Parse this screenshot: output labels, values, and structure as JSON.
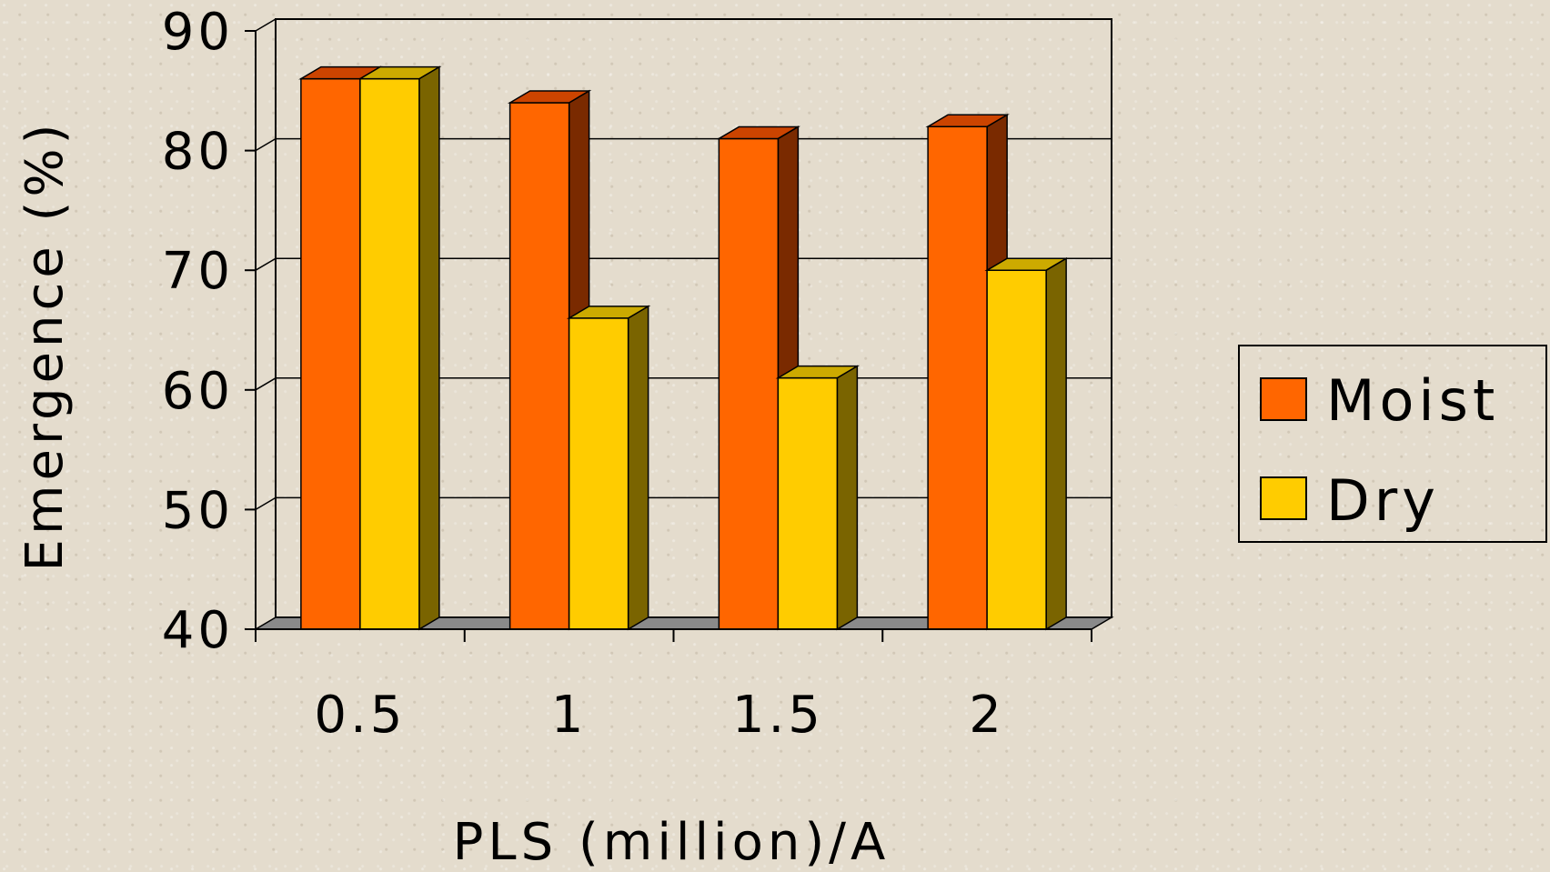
{
  "chart_data": {
    "type": "bar",
    "categories": [
      "0.5",
      "1",
      "1.5",
      "2"
    ],
    "series": [
      {
        "name": "Moist",
        "values": [
          86,
          84,
          81,
          82
        ],
        "color": "#ff6600",
        "top_color": "#cc4400",
        "side_color": "#7a2a00"
      },
      {
        "name": "Dry",
        "values": [
          86,
          66,
          61,
          70
        ],
        "color": "#ffcc00",
        "top_color": "#ccaa00",
        "side_color": "#7a6400"
      }
    ],
    "y_ticks": [
      40,
      50,
      60,
      70,
      80,
      90
    ],
    "ylim": [
      40,
      90
    ],
    "xlabel": "PLS (million)/A",
    "ylabel": "Emergence (%)",
    "title": "",
    "grid": true,
    "legend_position": "right"
  }
}
